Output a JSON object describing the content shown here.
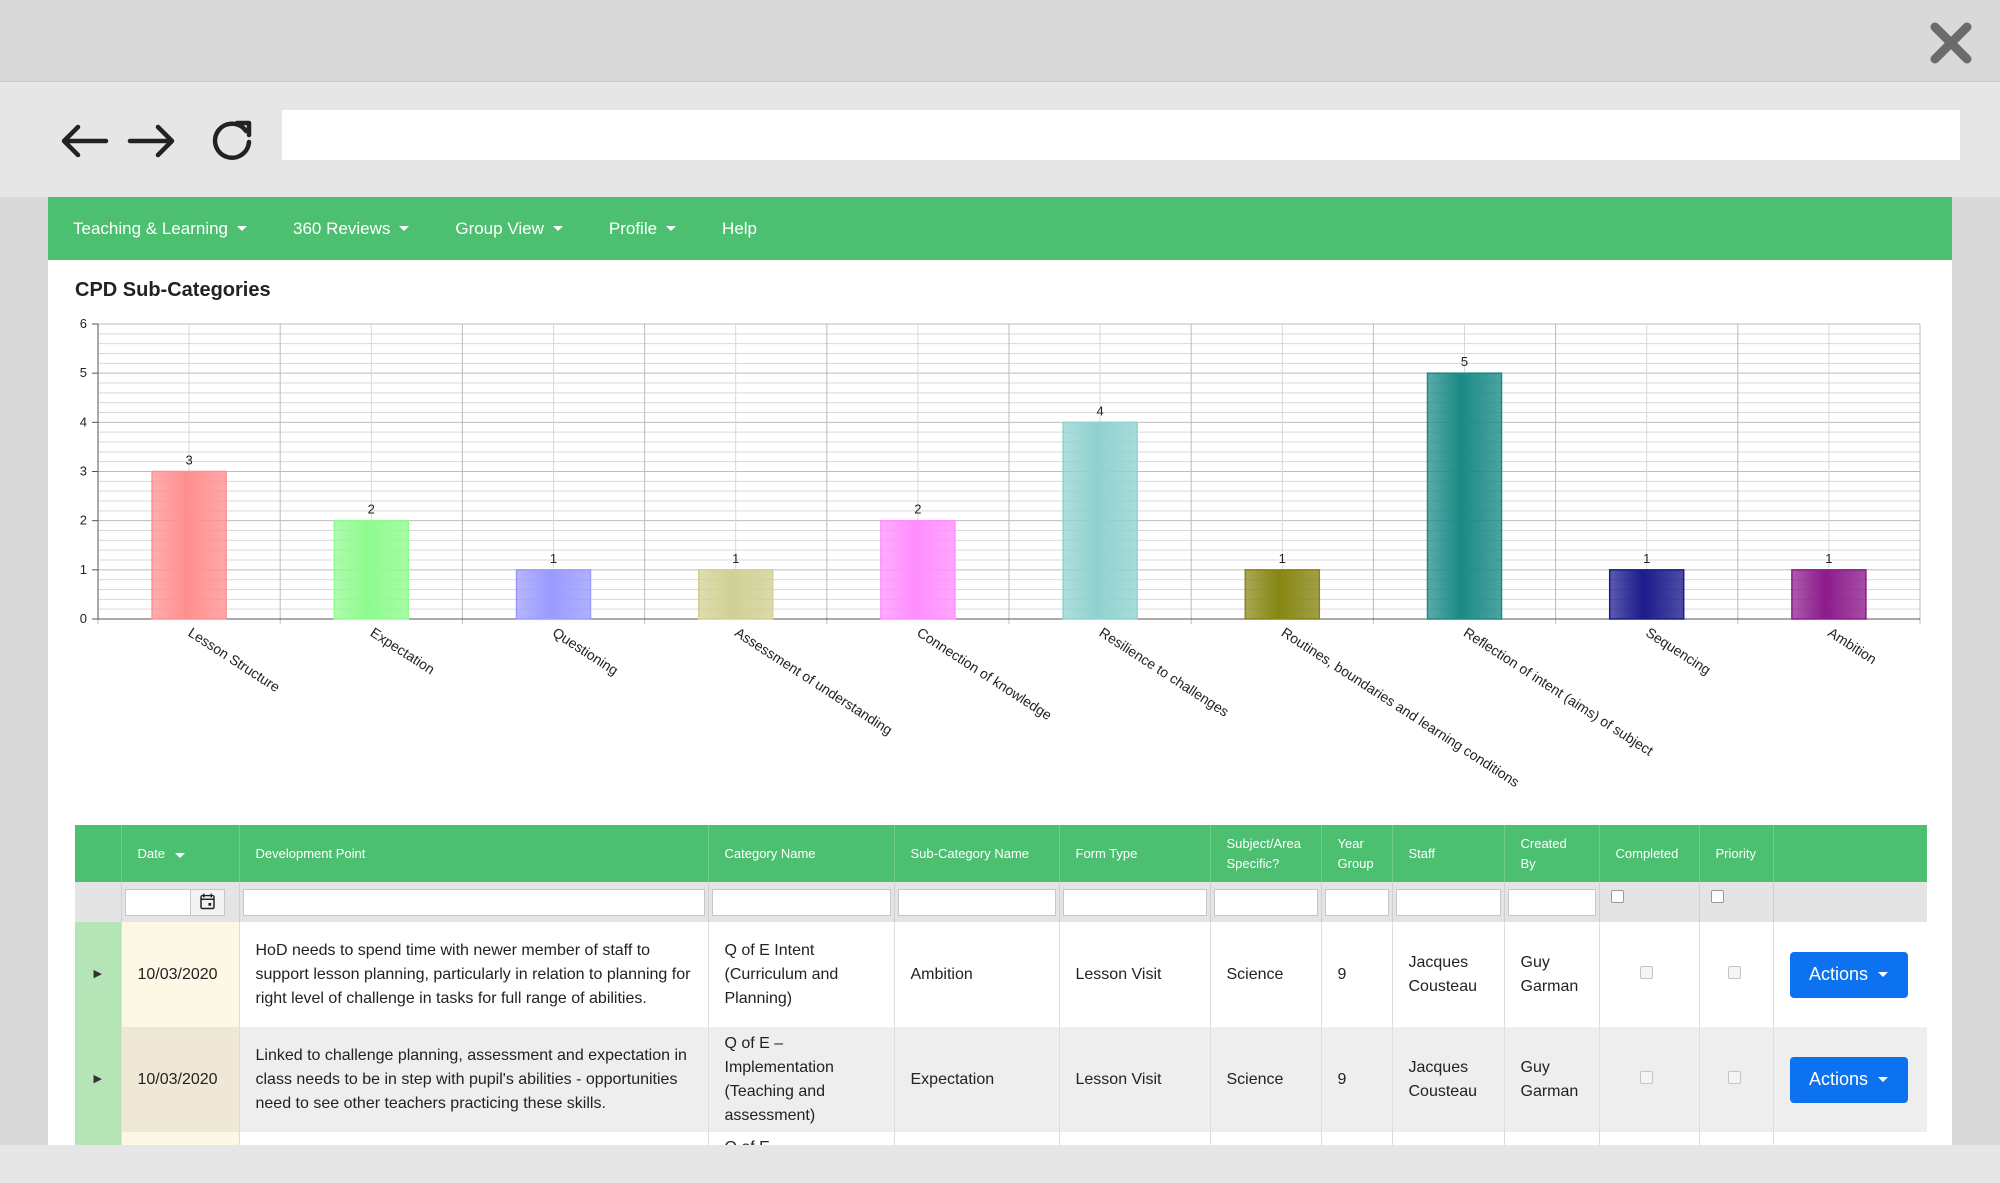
{
  "browser": {
    "url": ""
  },
  "menu": {
    "items": [
      {
        "label": "Teaching & Learning",
        "dropdown": true
      },
      {
        "label": "360 Reviews",
        "dropdown": true
      },
      {
        "label": "Group View",
        "dropdown": true
      },
      {
        "label": "Profile",
        "dropdown": true
      },
      {
        "label": "Help",
        "dropdown": false
      }
    ]
  },
  "chart": {
    "title": "CPD Sub-Categories"
  },
  "chart_data": {
    "type": "bar",
    "title": "CPD Sub-Categories",
    "categories": [
      "Lesson Structure",
      "Expectation",
      "Questioning",
      "Assessment of understanding",
      "Connection of knowledge",
      "Resilience to challenges",
      "Routines, boundaries and learning conditions",
      "Reflection of intent (aims) of subject",
      "Sequencing",
      "Ambition"
    ],
    "values": [
      3,
      2,
      1,
      1,
      2,
      4,
      1,
      5,
      1,
      1
    ],
    "bar_colors": [
      "#ff8f8f",
      "#8dfb8d",
      "#9a9aff",
      "#d0d094",
      "#ff8dff",
      "#8fd2cf",
      "#868612",
      "#1a8a86",
      "#1b1b8c",
      "#8c1b8c"
    ],
    "ylim": [
      0,
      6
    ],
    "yticks": [
      0,
      1,
      2,
      3,
      4,
      5,
      6
    ],
    "grid": true,
    "xlabel": "",
    "ylabel": ""
  },
  "table": {
    "columns": [
      "",
      "Date",
      "Development Point",
      "Category Name",
      "Sub-Category Name",
      "Form Type",
      "Subject/Area Specific?",
      "Year Group",
      "Staff",
      "Created By",
      "Completed",
      "Priority",
      ""
    ],
    "sort_column": "Date",
    "rows": [
      {
        "date": "10/03/2020",
        "development_point": "HoD needs to spend time with newer member of staff to support lesson planning, particularly in relation to planning for right level of challenge in tasks for full range of abilities.",
        "category": "Q of E Intent (Curriculum and Planning)",
        "sub_category": "Ambition",
        "form_type": "Lesson Visit",
        "subject": "Science",
        "year_group": "9",
        "staff": "Jacques Cousteau",
        "created_by": "Guy Garman",
        "completed": false,
        "priority": false,
        "action_label": "Actions"
      },
      {
        "date": "10/03/2020",
        "development_point": "Linked to challenge planning, assessment and expectation in class needs to be in step with pupil's abilities - opportunities need to see other teachers practicing these skills.",
        "category": "Q of E – Implementation (Teaching and assessment)",
        "sub_category": "Expectation",
        "form_type": "Lesson Visit",
        "subject": "Science",
        "year_group": "9",
        "staff": "Jacques Cousteau",
        "created_by": "Guy Garman",
        "completed": false,
        "priority": false,
        "action_label": "Actions"
      },
      {
        "date": "",
        "development_point": "",
        "category": "Q of E –",
        "sub_category": "",
        "form_type": "",
        "subject": "",
        "year_group": "",
        "staff": "",
        "created_by": "",
        "completed": false,
        "priority": false,
        "action_label": ""
      }
    ]
  }
}
